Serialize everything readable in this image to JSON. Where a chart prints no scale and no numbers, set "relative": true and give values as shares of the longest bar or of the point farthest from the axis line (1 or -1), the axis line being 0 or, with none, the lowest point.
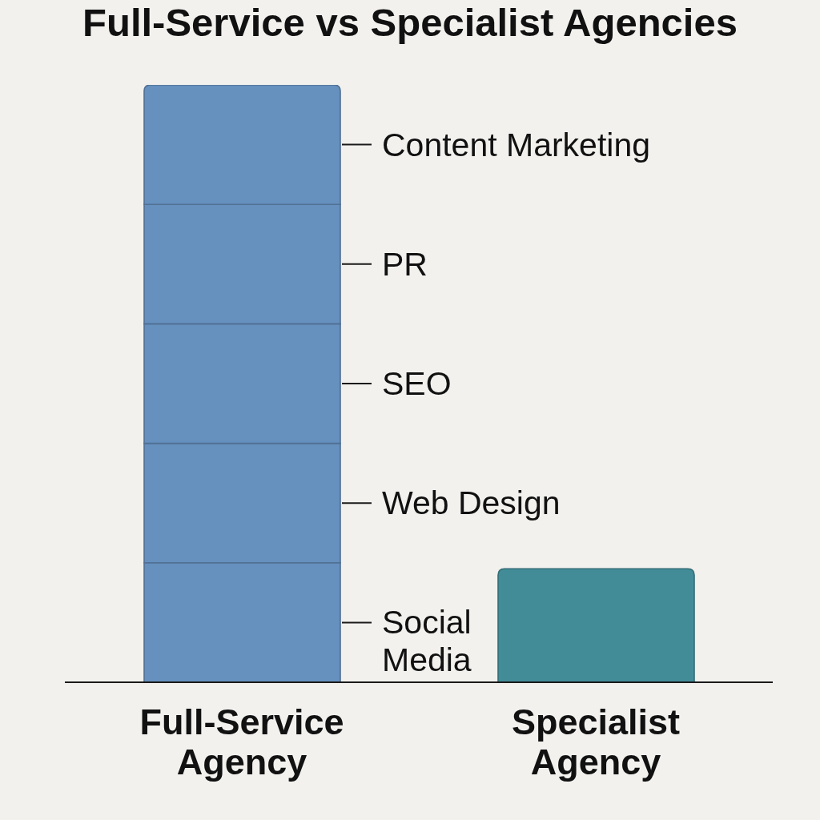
{
  "chart_data": {
    "type": "bar",
    "title": "Full-Service vs Specialist Agencies",
    "categories": [
      "Full-Service Agency",
      "Specialist Agency"
    ],
    "stacked": true,
    "relative": true,
    "series": [
      {
        "name": "Social Media",
        "color": "#6690be",
        "values": [
          0.2,
          null
        ]
      },
      {
        "name": "Web Design",
        "color": "#6690be",
        "values": [
          0.2,
          null
        ]
      },
      {
        "name": "SEO",
        "color": "#6690be",
        "values": [
          0.2,
          null
        ]
      },
      {
        "name": "PR",
        "color": "#6690be",
        "values": [
          0.2,
          null
        ]
      },
      {
        "name": "Content Marketing",
        "color": "#6690be",
        "values": [
          0.2,
          null
        ]
      },
      {
        "color": "#428c98",
        "values": [
          null,
          0.19
        ]
      }
    ]
  }
}
